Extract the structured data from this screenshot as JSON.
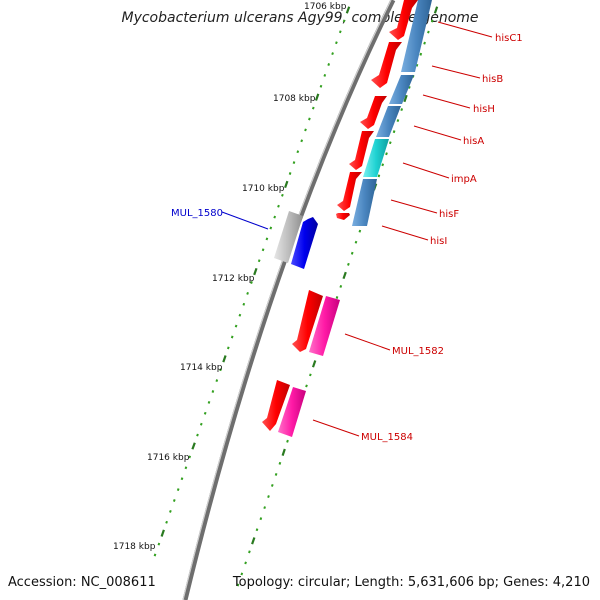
{
  "header": {
    "title": "Mycobacterium ulcerans Agy99, complete genome"
  },
  "footer": {
    "accession": "Accession: NC_008611",
    "summary": "Topology: circular; Length: 5,631,606 bp; Genes: 4,210"
  },
  "colors": {
    "background": "#ffffff",
    "backbone": "#888888",
    "tick_major": "#2a7a20",
    "tick_minor": "#33a020",
    "cds_forward": "#ff0000",
    "cds_reverse_blue": "#0000ee",
    "cds_grey": "#bdbdbd",
    "cds_pink": "#ff1aa6",
    "band_steelblue": "#4a86c0",
    "band_cyan": "#1fd2d2",
    "label_red": "#cc0000",
    "label_blue": "#0000cc"
  },
  "tick_labels": [
    "1706 kbp",
    "1708 kbp",
    "1710 kbp",
    "1712 kbp",
    "1714 kbp",
    "1716 kbp",
    "1718 kbp"
  ],
  "genes": [
    {
      "name": "hisC1",
      "color_key": "label_red"
    },
    {
      "name": "hisB",
      "color_key": "label_red"
    },
    {
      "name": "hisH",
      "color_key": "label_red"
    },
    {
      "name": "hisA",
      "color_key": "label_red"
    },
    {
      "name": "impA",
      "color_key": "label_red"
    },
    {
      "name": "hisF",
      "color_key": "label_red"
    },
    {
      "name": "hisI",
      "color_key": "label_red"
    },
    {
      "name": "MUL_1580",
      "color_key": "label_blue"
    },
    {
      "name": "MUL_1582",
      "color_key": "label_red"
    },
    {
      "name": "MUL_1584",
      "color_key": "label_red"
    }
  ]
}
